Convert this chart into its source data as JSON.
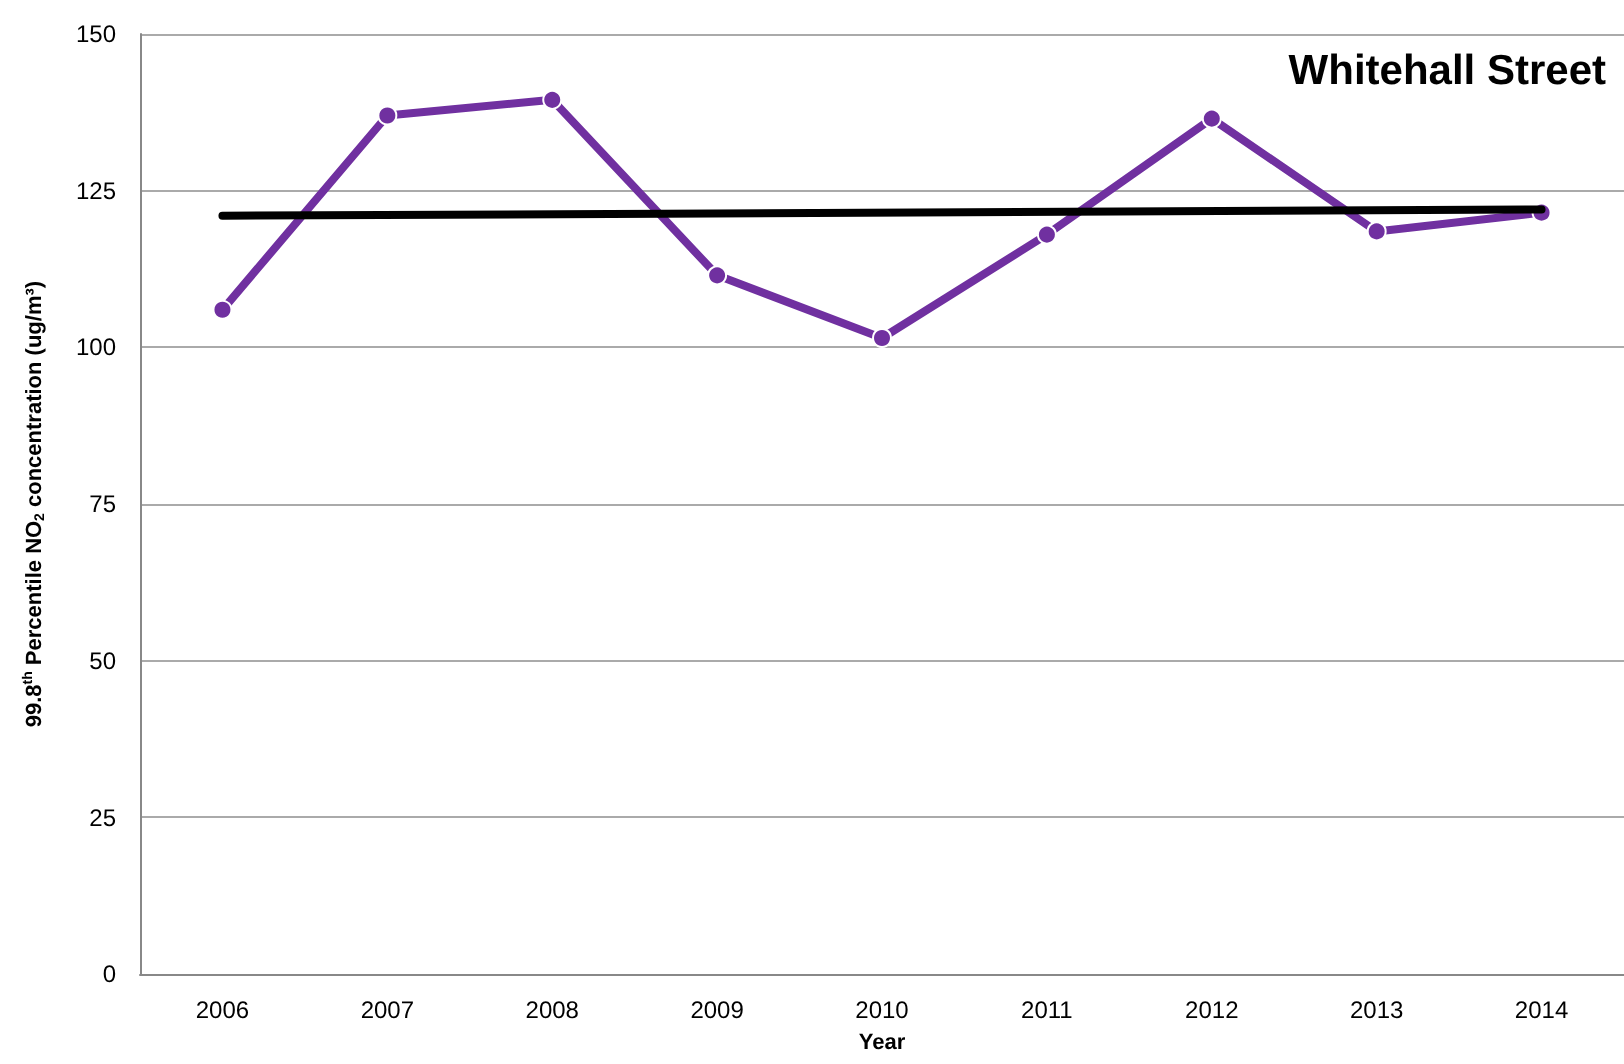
{
  "chart_data": {
    "type": "line",
    "title": "Whitehall Street",
    "xlabel": "Year",
    "ylabel": "99.8$^{th}$ Percentile NO$_{2}$ concentration (ug/m³)",
    "categories": [
      "2006",
      "2007",
      "2008",
      "2009",
      "2010",
      "2011",
      "2012",
      "2013",
      "2014"
    ],
    "series": [
      {
        "color": "#7030a0",
        "values": [
          106,
          137,
          139.5,
          111.5,
          101.5,
          118,
          136.5,
          118.5,
          121.5
        ],
        "marker": "circle"
      },
      {
        "type": "line",
        "color": "#000000",
        "values": [
          121,
          null,
          null,
          null,
          null,
          null,
          null,
          null,
          122
        ],
        "marker": "none"
      }
    ],
    "ylim": [
      0,
      150
    ],
    "yticks": [
      0,
      25,
      50,
      75,
      100,
      125,
      150
    ],
    "grid": "y",
    "line_style": "solid"
  }
}
